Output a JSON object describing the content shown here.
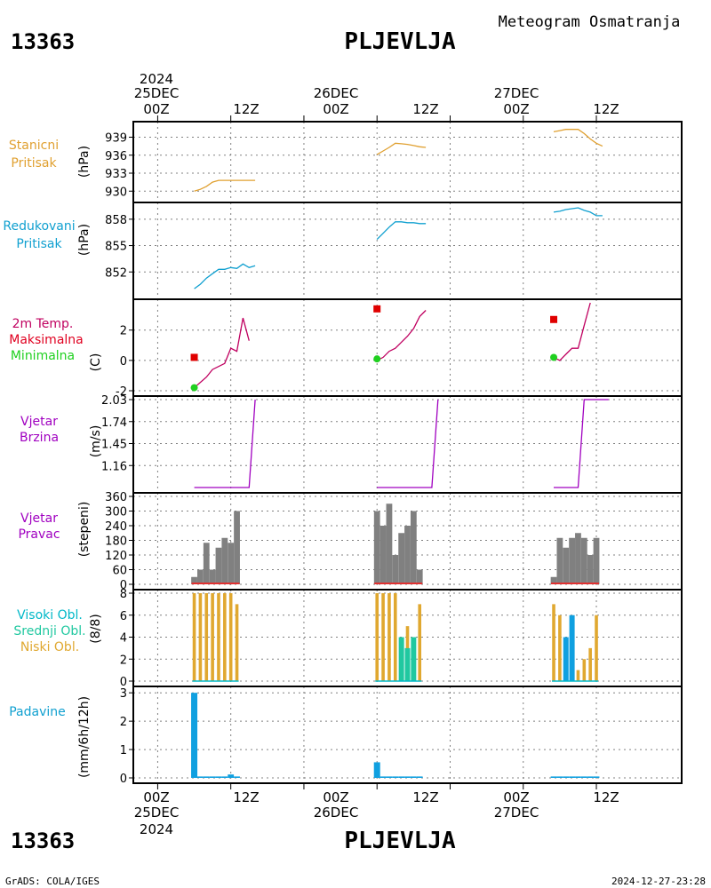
{
  "header": {
    "station_id": "13363",
    "station_name": "PLJEVLJA",
    "title": "Meteogram Osmatranja"
  },
  "footer": {
    "credit": "GrADS: COLA/IGES",
    "timestamp": "2024-12-27-23:28"
  },
  "time_axis": {
    "top_year": "2024",
    "bottom_year": "2024",
    "days": [
      {
        "date": "25DEC",
        "hour0": "00Z",
        "hour12": "12Z"
      },
      {
        "date": "26DEC",
        "hour0": "00Z",
        "hour12": "12Z"
      },
      {
        "date": "27DEC",
        "hour0": "00Z",
        "hour12": "12Z"
      }
    ]
  },
  "colors": {
    "pressure": "#e0a030",
    "reduced_pressure": "#10a0d0",
    "tmax_label": "#e00020",
    "tmax": "#e00000",
    "tmin": "#20d020",
    "temp_line": "#c00060",
    "wind": "#a000c0",
    "wind_dir_bar": "#808080",
    "wind_dir_base": "#e03030",
    "cloud_high": "#00b8c8",
    "cloud_mid": "#20c8a0",
    "cloud_low": "#e0a830",
    "cloud_mid_bar": "#10a0e0",
    "precip": "#10a0e0",
    "grid": "#808080"
  },
  "panels": {
    "station_pressure": {
      "labels": [
        "Stanicni",
        "Pritisak"
      ],
      "unit": "(hPa)"
    },
    "reduced_pressure": {
      "labels": [
        "Redukovani",
        "Pritisak"
      ],
      "unit": "(hPa)"
    },
    "temperature": {
      "labels": [
        "2m Temp.",
        "Maksimalna",
        "Minimalna"
      ],
      "unit": "(C)"
    },
    "wind_speed": {
      "labels": [
        "Vjetar",
        "Brzina"
      ],
      "unit": "(m/s)"
    },
    "wind_direction": {
      "labels": [
        "Vjetar",
        "Pravac"
      ],
      "unit": "(stepeni)"
    },
    "clouds": {
      "labels": [
        "Visoki Obl.",
        "Srednji Obl.",
        "Niski Obl."
      ],
      "unit": "(8/8)"
    },
    "precipitation": {
      "labels": [
        "Padavine"
      ],
      "unit": "(mm/6h/12h)"
    }
  },
  "chart_data": [
    {
      "type": "line",
      "panel": "station_pressure",
      "ylabel": "(hPa)",
      "ylim": [
        929,
        941
      ],
      "yticks": [
        930,
        933,
        936,
        939
      ],
      "x_unit": "hours since 2024-12-25 00Z",
      "xlim": [
        -4,
        86
      ],
      "series": [
        {
          "x": [
            6,
            7,
            8,
            9,
            10,
            11,
            12,
            13,
            14,
            15,
            16
          ],
          "y": [
            930,
            930.3,
            930.8,
            931.5,
            931.8,
            931.8,
            931.8,
            931.8,
            931.8,
            931.8,
            931.8
          ]
        },
        {
          "x": [
            36,
            37,
            38,
            39,
            40,
            41,
            42,
            43,
            44
          ],
          "y": [
            936.1,
            936.7,
            937.3,
            938,
            937.9,
            937.8,
            937.6,
            937.4,
            937.3
          ]
        },
        {
          "x": [
            65,
            66,
            67,
            68,
            69,
            70,
            71,
            72,
            73
          ],
          "y": [
            939.9,
            940.1,
            940.3,
            940.3,
            940.3,
            939.6,
            938.7,
            938,
            937.5
          ]
        }
      ]
    },
    {
      "type": "line",
      "panel": "reduced_pressure",
      "ylabel": "(hPa)",
      "ylim": [
        849.5,
        859.5
      ],
      "yticks": [
        852,
        855,
        858
      ],
      "x_unit": "hours since 2024-12-25 00Z",
      "xlim": [
        -4,
        86
      ],
      "series": [
        {
          "x": [
            6,
            7,
            8,
            9,
            10,
            11,
            12,
            13,
            14,
            15,
            16
          ],
          "y": [
            850.1,
            850.6,
            851.3,
            851.8,
            852.3,
            852.3,
            852.5,
            852.4,
            852.9,
            852.5,
            852.7
          ]
        },
        {
          "x": [
            36,
            37,
            38,
            39,
            40,
            41,
            42,
            43,
            44
          ],
          "y": [
            855.7,
            856.4,
            857.1,
            857.7,
            857.7,
            857.6,
            857.6,
            857.5,
            857.5
          ]
        },
        {
          "x": [
            65,
            66,
            67,
            68,
            69,
            70,
            71,
            72,
            73
          ],
          "y": [
            858.8,
            858.9,
            859.1,
            859.2,
            859.3,
            859,
            858.8,
            858.4,
            858.4
          ]
        }
      ]
    },
    {
      "type": "line",
      "panel": "temperature",
      "ylabel": "(C)",
      "ylim": [
        -2,
        3.8
      ],
      "yticks": [
        -2,
        0,
        2
      ],
      "x_unit": "hours since 2024-12-25 00Z",
      "xlim": [
        -4,
        86
      ],
      "series": [
        {
          "x": [
            6,
            8,
            9,
            11,
            12,
            13,
            14,
            15
          ],
          "y": [
            -1.8,
            -1.1,
            -0.6,
            -0.2,
            0.8,
            0.6,
            2.8,
            1.3
          ]
        },
        {
          "x": [
            36,
            37,
            38,
            39,
            40,
            41,
            42,
            43,
            44
          ],
          "y": [
            0,
            0.2,
            0.6,
            0.8,
            1.2,
            1.6,
            2.1,
            2.9,
            3.3
          ]
        },
        {
          "x": [
            65,
            66,
            67,
            68,
            69,
            70,
            71
          ],
          "y": [
            0.2,
            0,
            0.4,
            0.8,
            0.8,
            2.3,
            3.8
          ]
        }
      ],
      "tmax": [
        {
          "x": 6,
          "y": 0.2
        },
        {
          "x": 36,
          "y": 3.4
        },
        {
          "x": 65,
          "y": 2.7
        }
      ],
      "tmin": [
        {
          "x": 6,
          "y": -1.8
        },
        {
          "x": 36,
          "y": 0.1
        },
        {
          "x": 65,
          "y": 0.2
        }
      ]
    },
    {
      "type": "line",
      "panel": "wind_speed",
      "ylabel": "(m/s)",
      "ylim": [
        0.87,
        2.03
      ],
      "yticks": [
        1.16,
        1.45,
        1.74,
        2.03
      ],
      "x_unit": "hours since 2024-12-25 00Z",
      "xlim": [
        -4,
        86
      ],
      "series": [
        {
          "x": [
            6,
            15,
            16
          ],
          "y": [
            0.87,
            0.87,
            2.03
          ]
        },
        {
          "x": [
            36,
            45,
            46
          ],
          "y": [
            0.87,
            0.87,
            2.03
          ]
        },
        {
          "x": [
            65,
            69,
            70,
            74
          ],
          "y": [
            0.87,
            0.87,
            2.03,
            2.03
          ]
        }
      ]
    },
    {
      "type": "bar",
      "panel": "wind_direction",
      "ylabel": "(stepeni)",
      "ylim": [
        0,
        360
      ],
      "yticks": [
        0,
        60,
        120,
        180,
        240,
        300,
        360
      ],
      "x_unit": "hours since 2024-12-25 00Z",
      "xlim": [
        -4,
        86
      ],
      "x": [
        6,
        7,
        8,
        9,
        10,
        11,
        12,
        13,
        36,
        37,
        38,
        39,
        40,
        41,
        42,
        43,
        65,
        66,
        67,
        68,
        69,
        70,
        71,
        72
      ],
      "values": [
        30,
        60,
        170,
        60,
        150,
        190,
        170,
        300,
        300,
        240,
        330,
        120,
        210,
        240,
        300,
        60,
        30,
        190,
        150,
        190,
        210,
        190,
        120,
        190
      ]
    },
    {
      "type": "bar",
      "panel": "clouds",
      "ylabel": "(8/8)",
      "ylim": [
        0,
        8
      ],
      "yticks": [
        0,
        2,
        4,
        6,
        8
      ],
      "x_unit": "hours since 2024-12-25 00Z",
      "xlim": [
        -4,
        86
      ],
      "series": [
        {
          "key": "low",
          "x": [
            6,
            7,
            8,
            9,
            10,
            11,
            12,
            13,
            36,
            37,
            38,
            39,
            40,
            41,
            42,
            43,
            65,
            66,
            67,
            68,
            69,
            70,
            71,
            72
          ],
          "values": [
            8,
            8,
            8,
            8,
            8,
            8,
            8,
            7,
            8,
            8,
            8,
            8,
            4,
            5,
            4,
            7,
            7,
            6,
            2,
            0,
            1,
            2,
            3,
            6
          ]
        },
        {
          "key": "mid",
          "x": [
            40,
            41,
            42,
            67,
            68
          ],
          "values": [
            4,
            3,
            4,
            4,
            6
          ]
        },
        {
          "key": "high",
          "x": [],
          "values": []
        }
      ]
    },
    {
      "type": "bar",
      "panel": "precipitation",
      "ylabel": "(mm/6h/12h)",
      "ylim": [
        0,
        3.1
      ],
      "yticks": [
        0,
        1,
        2,
        3
      ],
      "x_unit": "hours since 2024-12-25 00Z",
      "xlim": [
        -4,
        86
      ],
      "x": [
        6,
        7,
        8,
        9,
        10,
        11,
        12,
        13,
        36,
        37,
        38,
        39,
        40,
        41,
        42,
        43,
        65,
        66,
        67,
        68,
        69,
        70,
        71,
        72
      ],
      "values": [
        3.0,
        0.05,
        0.05,
        0.05,
        0.05,
        0.05,
        0.12,
        0.05,
        0.55,
        0.05,
        0.05,
        0.05,
        0.05,
        0.05,
        0.05,
        0.05,
        0.05,
        0.05,
        0.05,
        0.05,
        0.05,
        0.05,
        0.05,
        0.05
      ]
    }
  ]
}
